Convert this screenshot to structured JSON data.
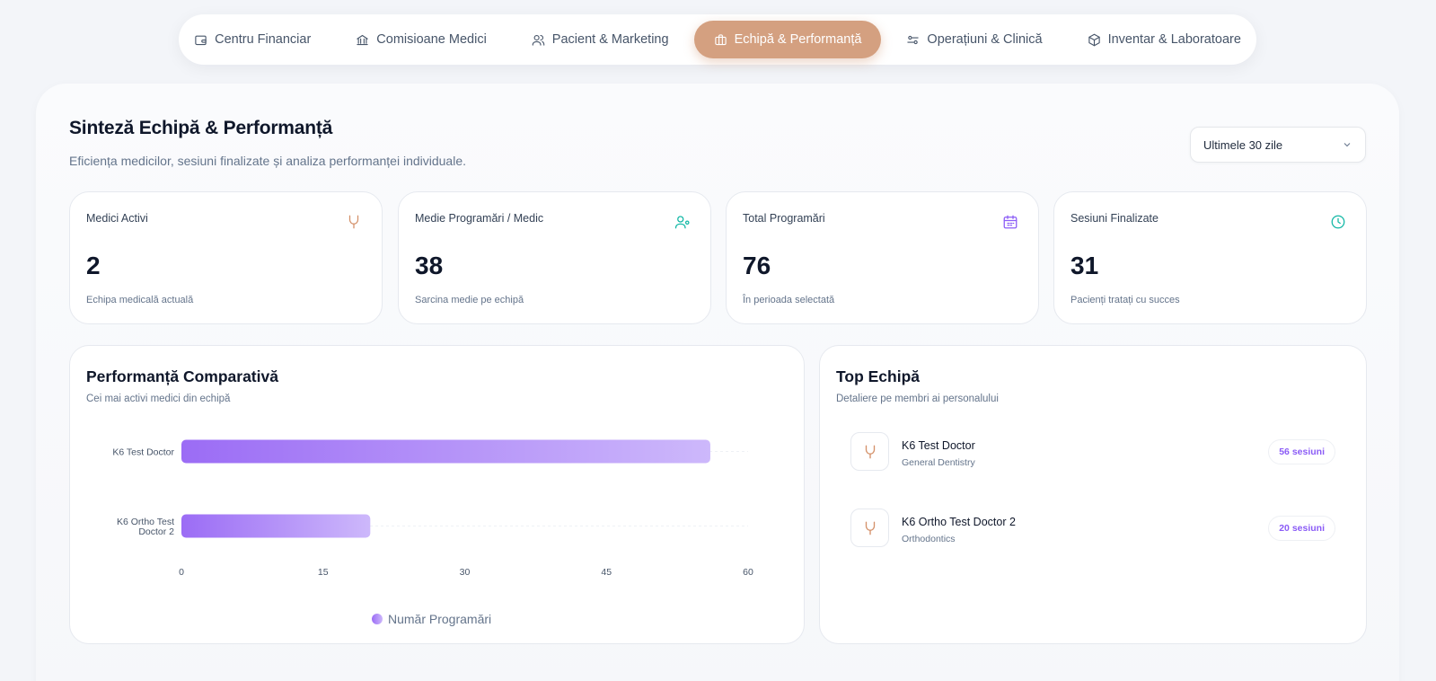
{
  "nav": {
    "tabs": [
      {
        "label": "Centru Financiar",
        "icon": "wallet-icon"
      },
      {
        "label": "Comisioane Medici",
        "icon": "bank-icon"
      },
      {
        "label": "Pacient & Marketing",
        "icon": "users-icon"
      },
      {
        "label": "Echipă & Performanță",
        "icon": "briefcase-icon",
        "active": true
      },
      {
        "label": "Operațiuni & Clinică",
        "icon": "sliders-icon"
      },
      {
        "label": "Inventar & Laboratoare",
        "icon": "box-icon"
      }
    ]
  },
  "header": {
    "title": "Sinteză Echipă & Performanță",
    "subtitle": "Eficiența medicilor, sesiuni finalizate și analiza performanței individuale."
  },
  "period_select": {
    "value": "Ultimele 30 zile"
  },
  "stats": [
    {
      "label": "Medici Activi",
      "value": "2",
      "note": "Echipa medicală actuală",
      "icon": "stethoscope-icon",
      "color": "#d4916a"
    },
    {
      "label": "Medie Programări / Medic",
      "value": "38",
      "note": "Sarcina medie pe echipă",
      "icon": "user-check-icon",
      "color": "#14b8a6"
    },
    {
      "label": "Total Programări",
      "value": "76",
      "note": "În perioada selectată",
      "icon": "calendar-icon",
      "color": "#8b5cf6"
    },
    {
      "label": "Sesiuni Finalizate",
      "value": "31",
      "note": "Pacienți tratați cu succes",
      "icon": "clock-icon",
      "color": "#14b8a6"
    }
  ],
  "comparative": {
    "title": "Performanță Comparativă",
    "subtitle": "Cei mai activi medici din echipă"
  },
  "chart_data": {
    "type": "bar",
    "orientation": "horizontal",
    "categories": [
      "K6 Test Doctor",
      "K6 Ortho Test Doctor 2"
    ],
    "series": [
      {
        "name": "Număr Programări",
        "values": [
          56,
          20
        ]
      }
    ],
    "xlim": [
      0,
      60
    ],
    "xticks": [
      "0",
      "15",
      "30",
      "45",
      "60"
    ],
    "grid": "horizontal",
    "legend": "bottom-center",
    "colors": [
      "#9b6cf5",
      "#cdb8fb"
    ]
  },
  "team": {
    "title": "Top Echipă",
    "subtitle": "Detaliere pe membri ai personalului",
    "members": [
      {
        "name": "K6 Test Doctor",
        "specialty": "General Dentistry",
        "sessions": "56 sesiuni",
        "icon": "stethoscope-icon"
      },
      {
        "name": "K6 Ortho Test Doctor 2",
        "specialty": "Orthodontics",
        "sessions": "20 sesiuni",
        "icon": "stethoscope-icon"
      }
    ]
  }
}
